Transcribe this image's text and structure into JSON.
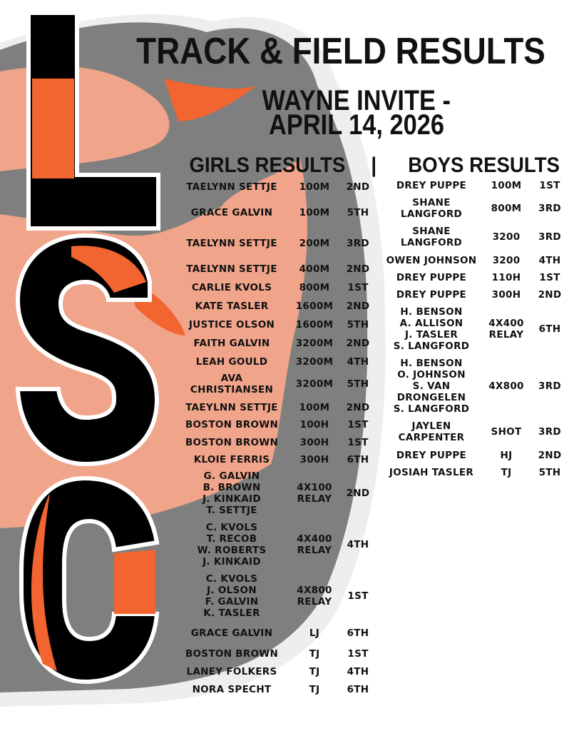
{
  "title": "TRACK & FIELD RESULTS",
  "meet": {
    "line1": "WAYNE INVITE -",
    "line2": "APRIL 14, 2026"
  },
  "headers": {
    "girls": "GIRLS RESULTS",
    "divider": "|",
    "boys": "BOYS RESULTS"
  },
  "logo_letters": "LSC",
  "colors": {
    "orange": "#f26430",
    "salmon": "#f0a48a",
    "gray": "#808080",
    "black": "#000000"
  },
  "girls": [
    {
      "name": "TAELYNN SETTJE",
      "event": "100M",
      "place": "2ND"
    },
    {
      "name": "GRACE GALVIN",
      "event": "100M",
      "place": "5TH"
    },
    {
      "name": "TAELYNN SETTJE",
      "event": "200M",
      "place": "3RD"
    },
    {
      "name": "TAELYNN SETTJE",
      "event": "400M",
      "place": "2ND"
    },
    {
      "name": "CARLIE KVOLS",
      "event": "800M",
      "place": "1ST"
    },
    {
      "name": "KATE TASLER",
      "event": "1600M",
      "place": "2ND"
    },
    {
      "name": "JUSTICE OLSON",
      "event": "1600M",
      "place": "5TH"
    },
    {
      "name": "FAITH GALVIN",
      "event": "3200M",
      "place": "2ND"
    },
    {
      "name": "LEAH GOULD",
      "event": "3200M",
      "place": "4TH"
    },
    {
      "name": "AVA\nCHRISTIANSEN",
      "event": "3200M",
      "place": "5TH"
    },
    {
      "name": "TAEYLNN SETTJE",
      "event": "100M",
      "place": "2ND"
    },
    {
      "name": "BOSTON BROWN",
      "event": "100H",
      "place": "1ST"
    },
    {
      "name": "BOSTON BROWN",
      "event": "300H",
      "place": "1ST"
    },
    {
      "name": "KLOIE FERRIS",
      "event": "300H",
      "place": "6TH"
    },
    {
      "name": "G. GALVIN\nB. BROWN\nJ. KINKAID\nT. SETTJE",
      "event": "4X100\nRELAY",
      "place": "2ND"
    },
    {
      "name": "C. KVOLS\nT. RECOB\nW. ROBERTS\nJ. KINKAID",
      "event": "4X400\nRELAY",
      "place": "4TH"
    },
    {
      "name": "C. KVOLS\nJ. OLSON\nF. GALVIN\nK. TASLER",
      "event": "4X800\nRELAY",
      "place": "1ST"
    },
    {
      "name": "GRACE GALVIN",
      "event": "LJ",
      "place": "6TH"
    },
    {
      "name": "BOSTON BROWN",
      "event": "TJ",
      "place": "1ST"
    },
    {
      "name": "LANEY FOLKERS",
      "event": "TJ",
      "place": "4TH"
    },
    {
      "name": "NORA SPECHT",
      "event": "TJ",
      "place": "6TH"
    }
  ],
  "boys": [
    {
      "name": "DREY PUPPE",
      "event": "100M",
      "place": "1ST"
    },
    {
      "name": "SHANE\nLANGFORD",
      "event": "800M",
      "place": "3RD"
    },
    {
      "name": "SHANE\nLANGFORD",
      "event": "3200",
      "place": "3RD"
    },
    {
      "name": "OWEN JOHNSON",
      "event": "3200",
      "place": "4TH"
    },
    {
      "name": "DREY PUPPE",
      "event": "110H",
      "place": "1ST"
    },
    {
      "name": "DREY PUPPE",
      "event": "300H",
      "place": "2ND"
    },
    {
      "name": "H. BENSON\nA. ALLISON\nJ. TASLER\nS. LANGFORD",
      "event": "4X400\nRELAY",
      "place": "6TH"
    },
    {
      "name": "H. BENSON\nO. JOHNSON\nS. VAN\nDRONGELEN\nS. LANGFORD",
      "event": "4X800",
      "place": "3RD"
    },
    {
      "name": "JAYLEN\nCARPENTER",
      "event": "SHOT",
      "place": "3RD"
    },
    {
      "name": "DREY PUPPE",
      "event": "HJ",
      "place": "2ND"
    },
    {
      "name": "JOSIAH TASLER",
      "event": "TJ",
      "place": "5TH"
    }
  ]
}
